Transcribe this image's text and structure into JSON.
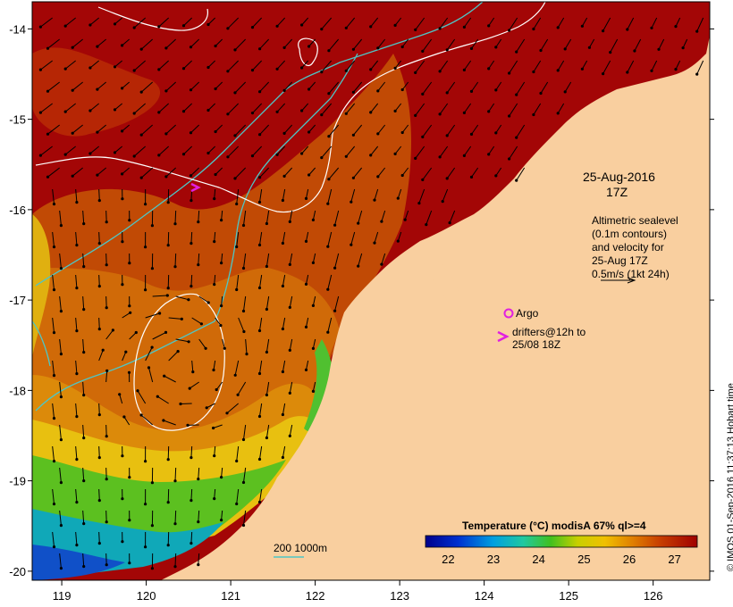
{
  "map": {
    "lon_ticks": [
      "119",
      "120",
      "121",
      "122",
      "123",
      "124",
      "125",
      "126"
    ],
    "lat_ticks": [
      "-14",
      "-15",
      "-16",
      "-17",
      "-18",
      "-19",
      "-20"
    ],
    "lon_range": [
      118.65,
      126.67
    ],
    "lat_range": [
      -20.1,
      -13.7
    ]
  },
  "annotations": {
    "date_line1": "25-Aug-2016",
    "date_line2": "17Z",
    "alti_line1": "Altimetric sealevel",
    "alti_line2": "(0.1m contours)",
    "alti_line3": "and velocity for",
    "alti_line4": "25-Aug 17Z",
    "alti_line5": "0.5m/s (1kt 24h)"
  },
  "legend": {
    "argo_label": "Argo",
    "drifter_line1": "drifters@12h to",
    "drifter_line2": "25/08 18Z",
    "depth_label": "200  1000m"
  },
  "colorbar": {
    "title": "Temperature (°C) modisA 67% ql>=4",
    "ticks": [
      "22",
      "23",
      "24",
      "25",
      "26",
      "27"
    ],
    "range": [
      21.5,
      27.5
    ]
  },
  "credit": "© IMOS 01-Sep-2016 11:37:13 Hobart time",
  "colors": {
    "land": "#f9cf9f",
    "warm": "#a30606",
    "contour": "#ffffff",
    "isobath": "#4ec6c6",
    "argo": "#e020e0",
    "drifter": "#e020e0"
  }
}
